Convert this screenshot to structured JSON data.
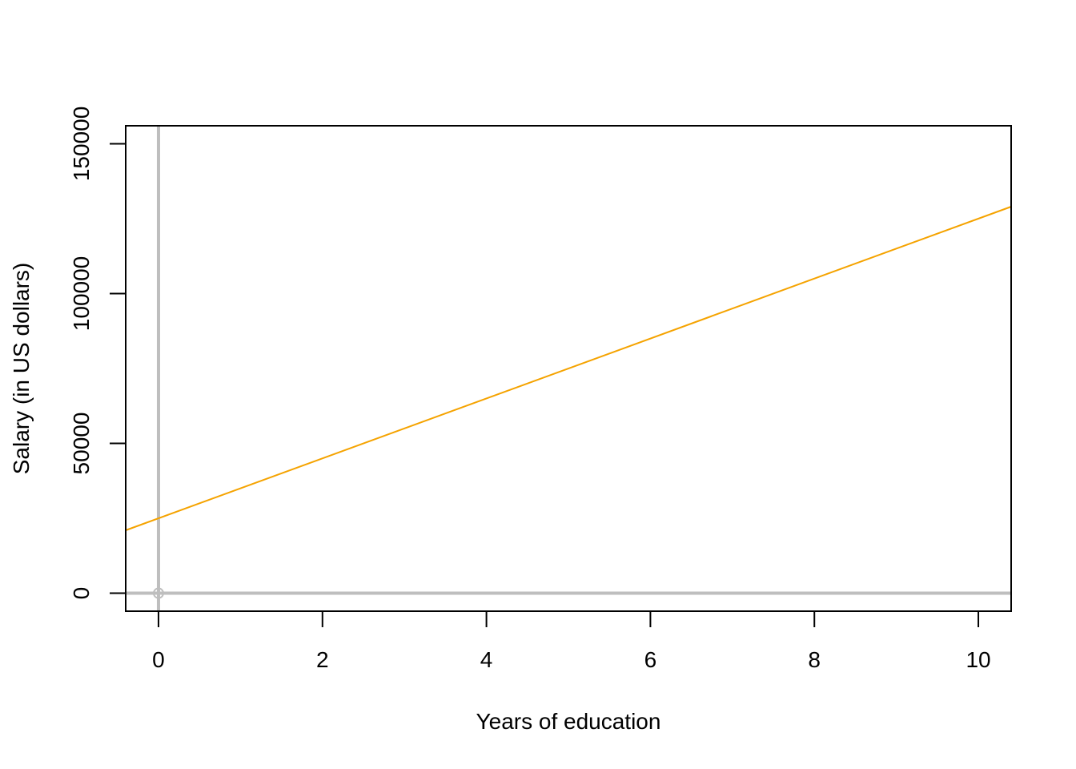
{
  "chart_data": {
    "type": "line",
    "title": "",
    "xlabel": "Years of education",
    "ylabel": "Salary (in US dollars)",
    "xlim": [
      -0.4,
      10.4
    ],
    "ylim": [
      -6000,
      156000
    ],
    "x_ticks": [
      0,
      2,
      4,
      6,
      8,
      10
    ],
    "x_tick_labels": [
      "0",
      "2",
      "4",
      "6",
      "8",
      "10"
    ],
    "y_ticks": [
      0,
      50000,
      100000,
      150000
    ],
    "y_tick_labels": [
      "0",
      "50000",
      "100000",
      "150000"
    ],
    "series": [
      {
        "x": [
          -0.4,
          10.4
        ],
        "y": [
          21000,
          129000
        ],
        "color": "#f5a300"
      }
    ],
    "reference_lines": {
      "x": 0,
      "y": 0,
      "color": "#bebebe"
    },
    "origin_marker": {
      "x": 0,
      "y": 0,
      "color": "#bebebe"
    },
    "grid": false,
    "legend": "none"
  }
}
